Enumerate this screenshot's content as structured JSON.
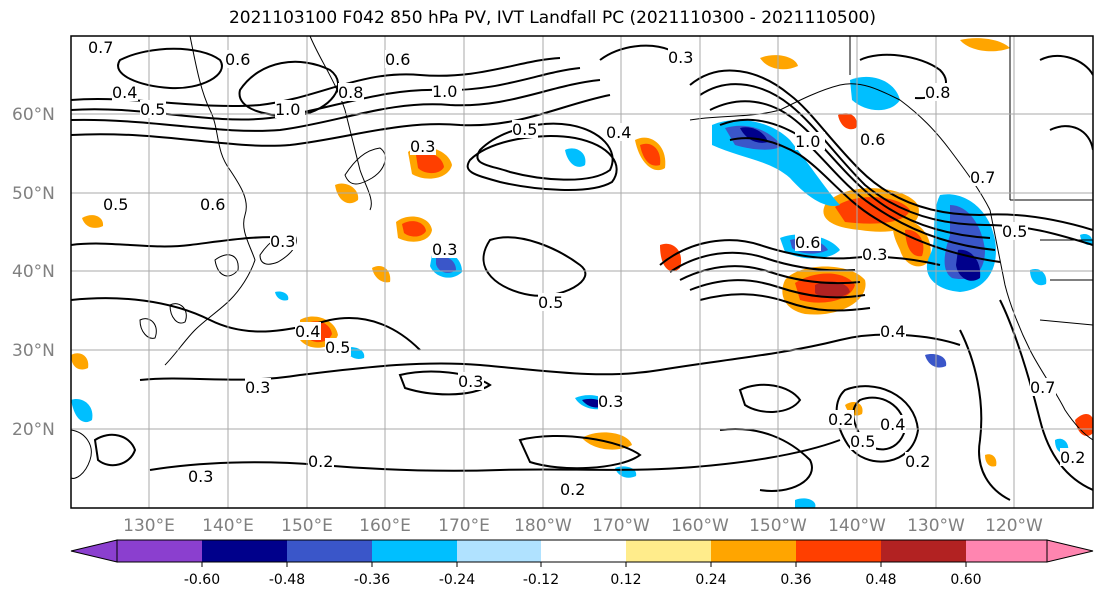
{
  "title": "2021103100 F042 850 hPa PV, IVT Landfall PC (2021110300 - 2021110500)",
  "map": {
    "lat_labels": [
      "60°N",
      "50°N",
      "40°N",
      "30°N",
      "20°N"
    ],
    "lon_labels": [
      "130°E",
      "140°E",
      "150°E",
      "160°E",
      "170°E",
      "180°W",
      "170°W",
      "160°W",
      "150°W",
      "140°W",
      "130°W",
      "120°W"
    ],
    "contour_labels": [
      "0.7",
      "0.6",
      "0.4",
      "0.5",
      "1.0",
      "0.8",
      "1.0",
      "0.6",
      "0.3",
      "0.5",
      "0.4",
      "0.3",
      "1.0",
      "0.6",
      "0.8",
      "0.7",
      "0.5",
      "0.6",
      "0.3",
      "0.3",
      "0.5",
      "0.4",
      "0.3",
      "0.5",
      "0.4",
      "0.5",
      "0.6",
      "0.3",
      "0.3",
      "0.2",
      "0.3",
      "0.2",
      "0.2",
      "0.5",
      "0.4",
      "0.2",
      "0.7",
      "0.3",
      "0.2"
    ]
  },
  "colorbar": {
    "tick_labels": [
      "-0.60",
      "-0.48",
      "-0.36",
      "-0.24",
      "-0.12",
      "0.12",
      "0.24",
      "0.36",
      "0.48",
      "0.60"
    ],
    "colors": [
      "#8b3fcf",
      "#00008b",
      "#3a56c9",
      "#00bfff",
      "#b0e2ff",
      "#ffffff",
      "#ffec8b",
      "#ffa500",
      "#ff3f00",
      "#b22222",
      "#ff85b0"
    ]
  }
}
